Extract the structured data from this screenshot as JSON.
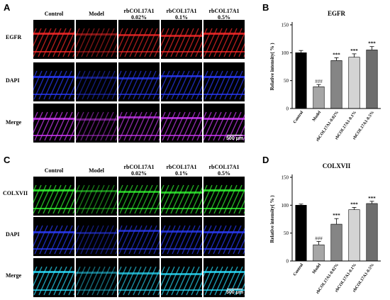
{
  "panels": {
    "A": {
      "label": "A"
    },
    "B": {
      "label": "B"
    },
    "C": {
      "label": "C"
    },
    "D": {
      "label": "D"
    }
  },
  "columns": [
    {
      "line1": "Control",
      "line2": ""
    },
    {
      "line1": "Model",
      "line2": ""
    },
    {
      "line1": "rbCOL17A1",
      "line2": "0.02%"
    },
    {
      "line1": "rbCOL17A1",
      "line2": "0.1%"
    },
    {
      "line1": "rbCOL17A1",
      "line2": "0.5%"
    }
  ],
  "rows_top": [
    "EGFR",
    "DAPI",
    "Merge"
  ],
  "rows_bottom": [
    "COLXVII",
    "DAPI",
    "Merge"
  ],
  "scale_bar": "500 μm",
  "colors": {
    "egfr": "#ff2a2a",
    "dapi": "#2a3cff",
    "merge_top": "#d63cff",
    "colxvii": "#33ff33",
    "merge_bottom": "#2ae0ff"
  },
  "chart_data": [
    {
      "type": "bar",
      "title": "EGFR",
      "ylabel": "Relative  intensity(  %  )",
      "ylim": [
        0,
        150
      ],
      "yticks": [
        0,
        50,
        100,
        150
      ],
      "categories": [
        "Control",
        "Model",
        "rbCOL17A1-0.02%",
        "rbCOL17A1-0.1%",
        "rbCOL17A1-0.5%"
      ],
      "values": [
        100,
        39,
        86,
        92,
        105
      ],
      "errors": [
        4,
        4,
        5,
        6,
        6
      ],
      "bar_colors": [
        "#000000",
        "#a6a6a6",
        "#858585",
        "#d4d4d4",
        "#6e6e6e"
      ],
      "annotations": [
        "",
        "###",
        "***",
        "***",
        "***"
      ]
    },
    {
      "type": "bar",
      "title": "COLXVII",
      "ylabel": "Relative  intensity(  %  )",
      "ylim": [
        0,
        150
      ],
      "yticks": [
        0,
        50,
        100,
        150
      ],
      "categories": [
        "Control",
        "Model",
        "rbCOL17A1-0.02%",
        "rbCOL17A1-0.1%",
        "rbCOL17A1-0.5%"
      ],
      "values": [
        100,
        29,
        66,
        92,
        103
      ],
      "errors": [
        2,
        6,
        10,
        4,
        4
      ],
      "bar_colors": [
        "#000000",
        "#a6a6a6",
        "#858585",
        "#d4d4d4",
        "#6e6e6e"
      ],
      "annotations": [
        "",
        "###",
        "***",
        "***",
        "***"
      ]
    }
  ]
}
